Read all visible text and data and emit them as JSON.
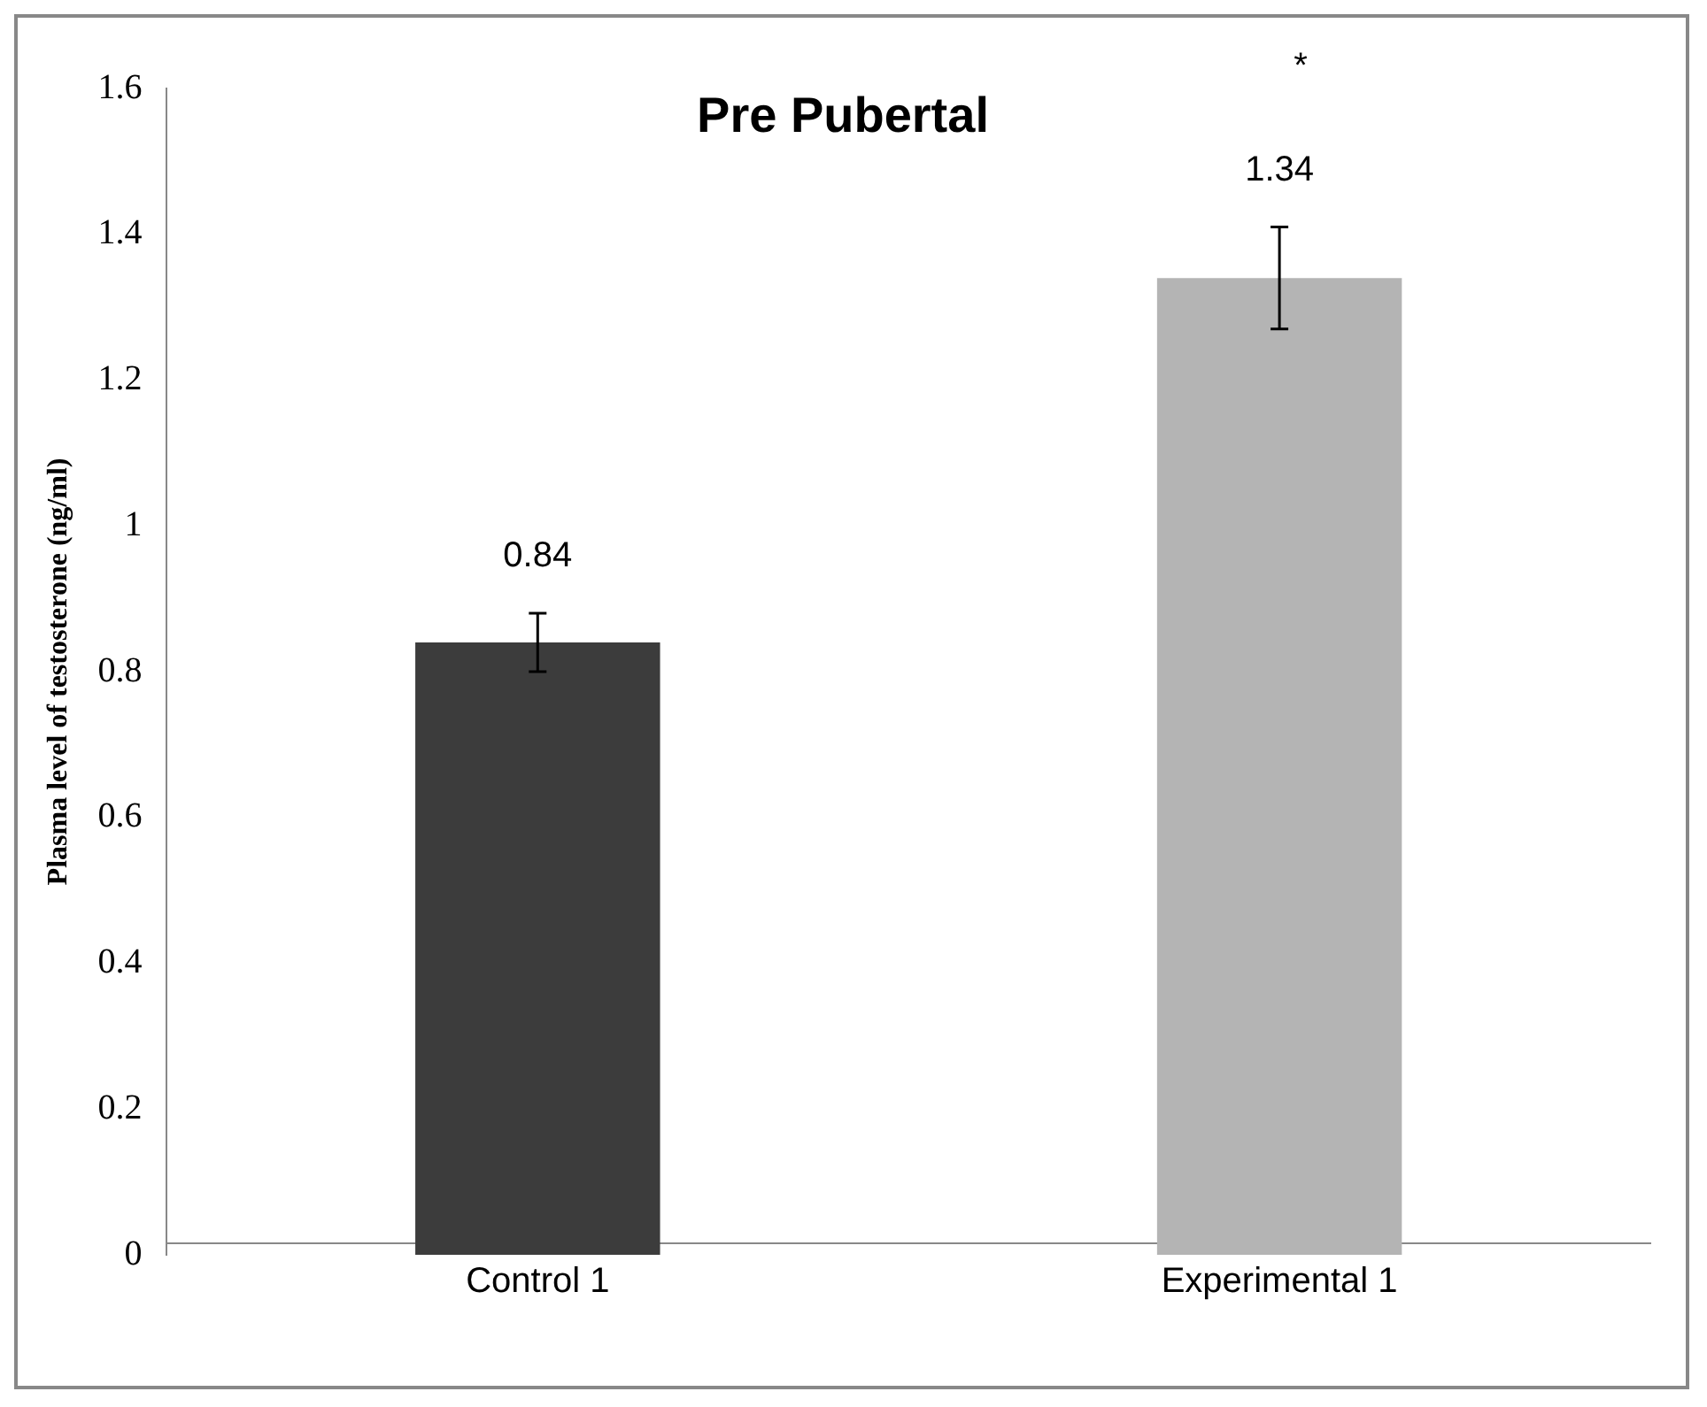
{
  "chart_data": {
    "type": "bar",
    "title": "Pre Pubertal",
    "ylabel": "Plasma level of testosterone (ng/ml)",
    "categories": [
      "Control 1",
      "Experimental 1"
    ],
    "values": [
      0.84,
      1.34
    ],
    "colors": [
      "#3c3c3c",
      "#b4b4b4"
    ],
    "errors": [
      0.04,
      0.07
    ],
    "ylim": [
      0,
      1.6
    ],
    "yticks": [
      0,
      0.2,
      0.4,
      0.6,
      0.8,
      1,
      1.2,
      1.4,
      1.6
    ],
    "data_labels": true,
    "grid": false,
    "legend": false,
    "annotations": [
      "*"
    ]
  }
}
